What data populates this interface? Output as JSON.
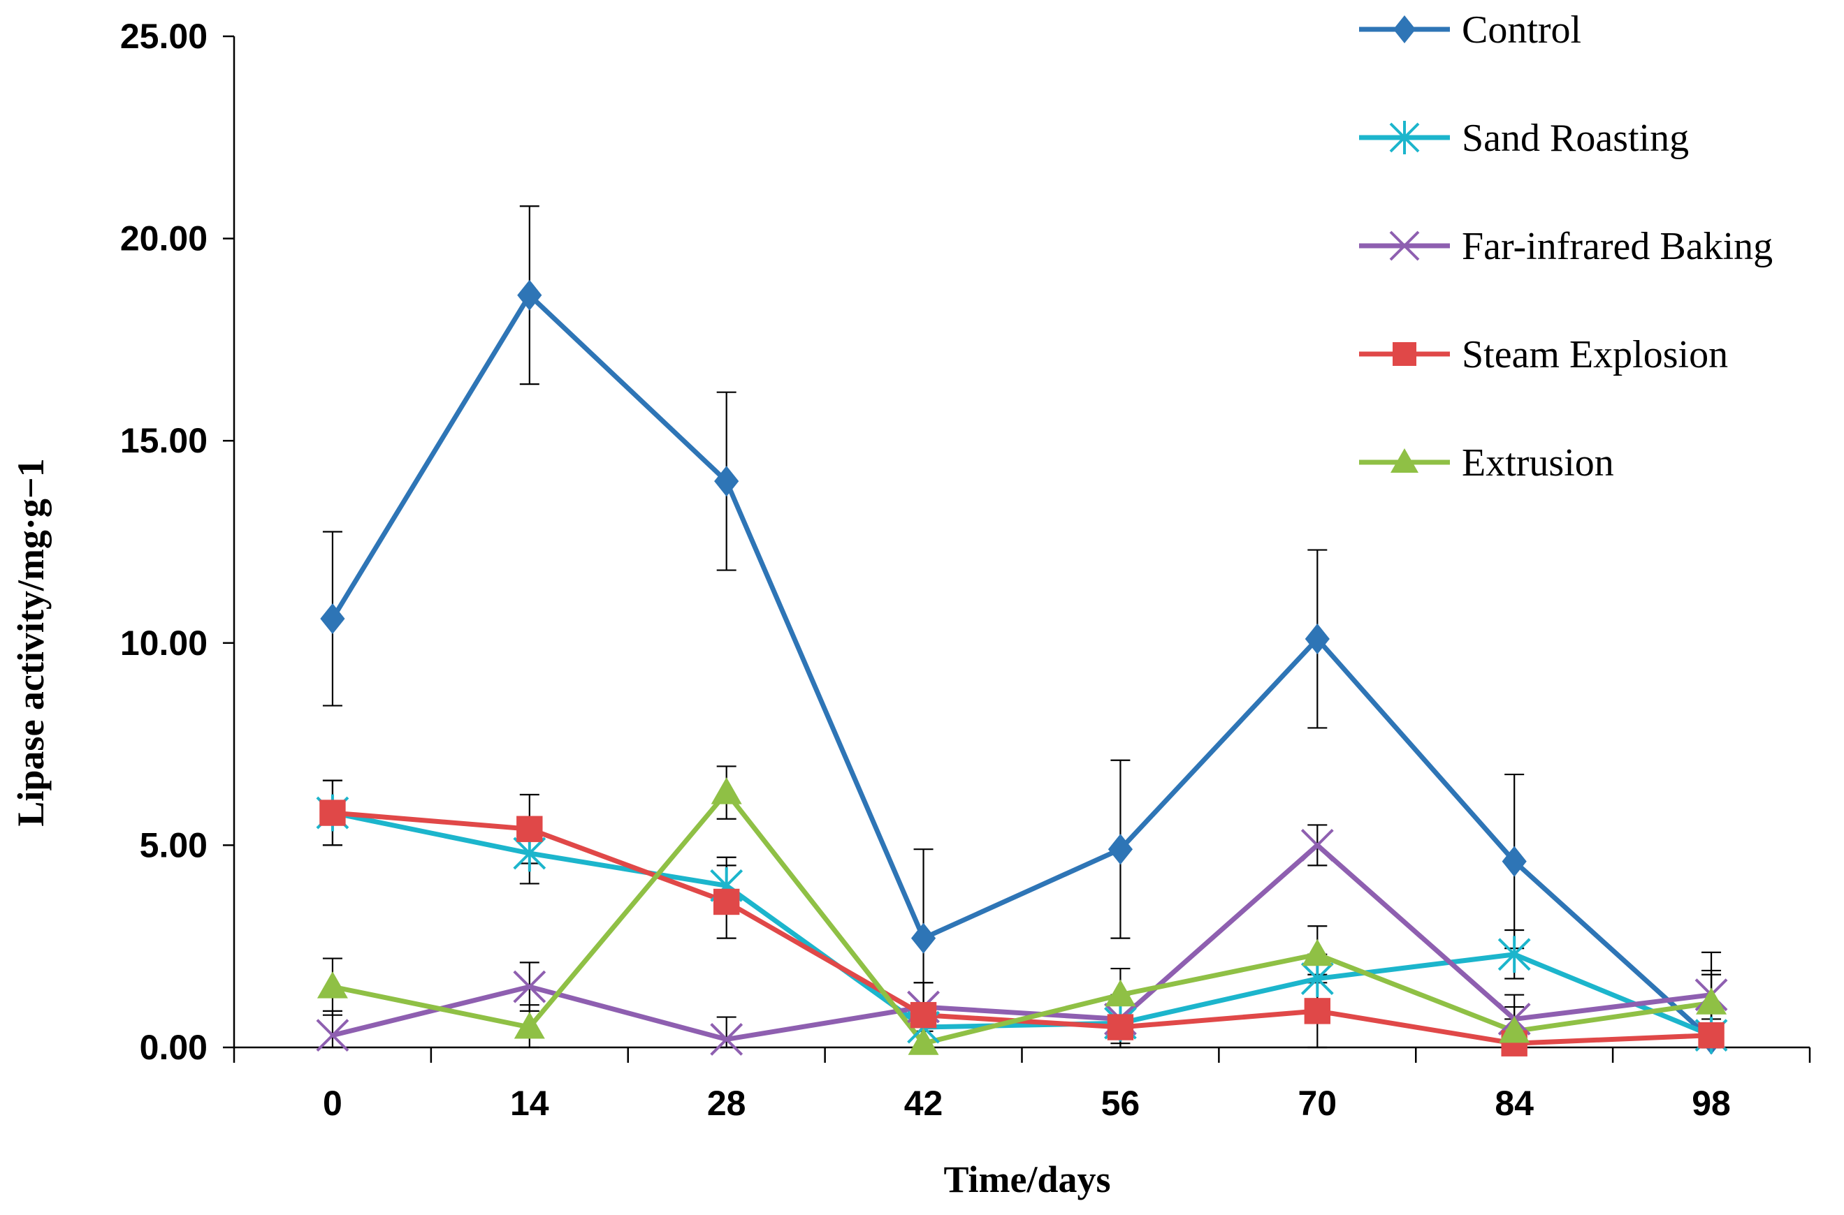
{
  "chart_data": {
    "type": "line",
    "title": "",
    "xlabel": "Time/days",
    "ylabel": "Lipase activity/mg·g−1",
    "categories": [
      "0",
      "14",
      "28",
      "42",
      "56",
      "70",
      "84",
      "98"
    ],
    "ylim": [
      0,
      25
    ],
    "yticks": [
      "0.00",
      "5.00",
      "10.00",
      "15.00",
      "20.00",
      "25.00"
    ],
    "ytick_values": [
      0,
      5,
      10,
      15,
      20,
      25
    ],
    "grid": false,
    "legend_position": "top-right",
    "series": [
      {
        "name": "Control",
        "color": "#2E75B6",
        "marker": "diamond",
        "values": [
          10.6,
          18.6,
          14.0,
          2.7,
          4.9,
          10.1,
          4.6,
          0.2
        ],
        "errors": [
          2.15,
          2.2,
          2.2,
          2.2,
          2.2,
          2.2,
          2.15,
          2.15
        ]
      },
      {
        "name": "Sand Roasting",
        "color": "#1CB5CC",
        "marker": "asterisk",
        "values": [
          5.8,
          4.8,
          4.0,
          0.5,
          0.6,
          1.7,
          2.3,
          0.3
        ],
        "errors": [
          0.8,
          0.75,
          0.7,
          0.6,
          0.6,
          0.6,
          0.6,
          0.6
        ]
      },
      {
        "name": "Far-infrared Baking",
        "color": "#8E5FB0",
        "marker": "x",
        "values": [
          0.3,
          1.5,
          0.2,
          1.0,
          0.7,
          5.0,
          0.7,
          1.3
        ],
        "errors": [
          0.6,
          0.6,
          0.55,
          0.6,
          0.6,
          0.5,
          0.6,
          0.6
        ]
      },
      {
        "name": "Steam Explosion",
        "color": "#E04848",
        "marker": "square",
        "values": [
          5.8,
          5.4,
          3.6,
          0.8,
          0.5,
          0.9,
          0.1,
          0.3
        ],
        "errors": [
          0.8,
          0.85,
          0.9,
          0.8,
          0.6,
          0.9,
          0.6,
          0.6
        ]
      },
      {
        "name": "Extrusion",
        "color": "#8FC045",
        "marker": "triangle",
        "values": [
          1.5,
          0.5,
          6.3,
          0.1,
          1.3,
          2.3,
          0.4,
          1.1
        ],
        "errors": [
          0.7,
          0.55,
          0.65,
          0.6,
          0.65,
          0.7,
          0.6,
          0.7
        ]
      }
    ]
  }
}
